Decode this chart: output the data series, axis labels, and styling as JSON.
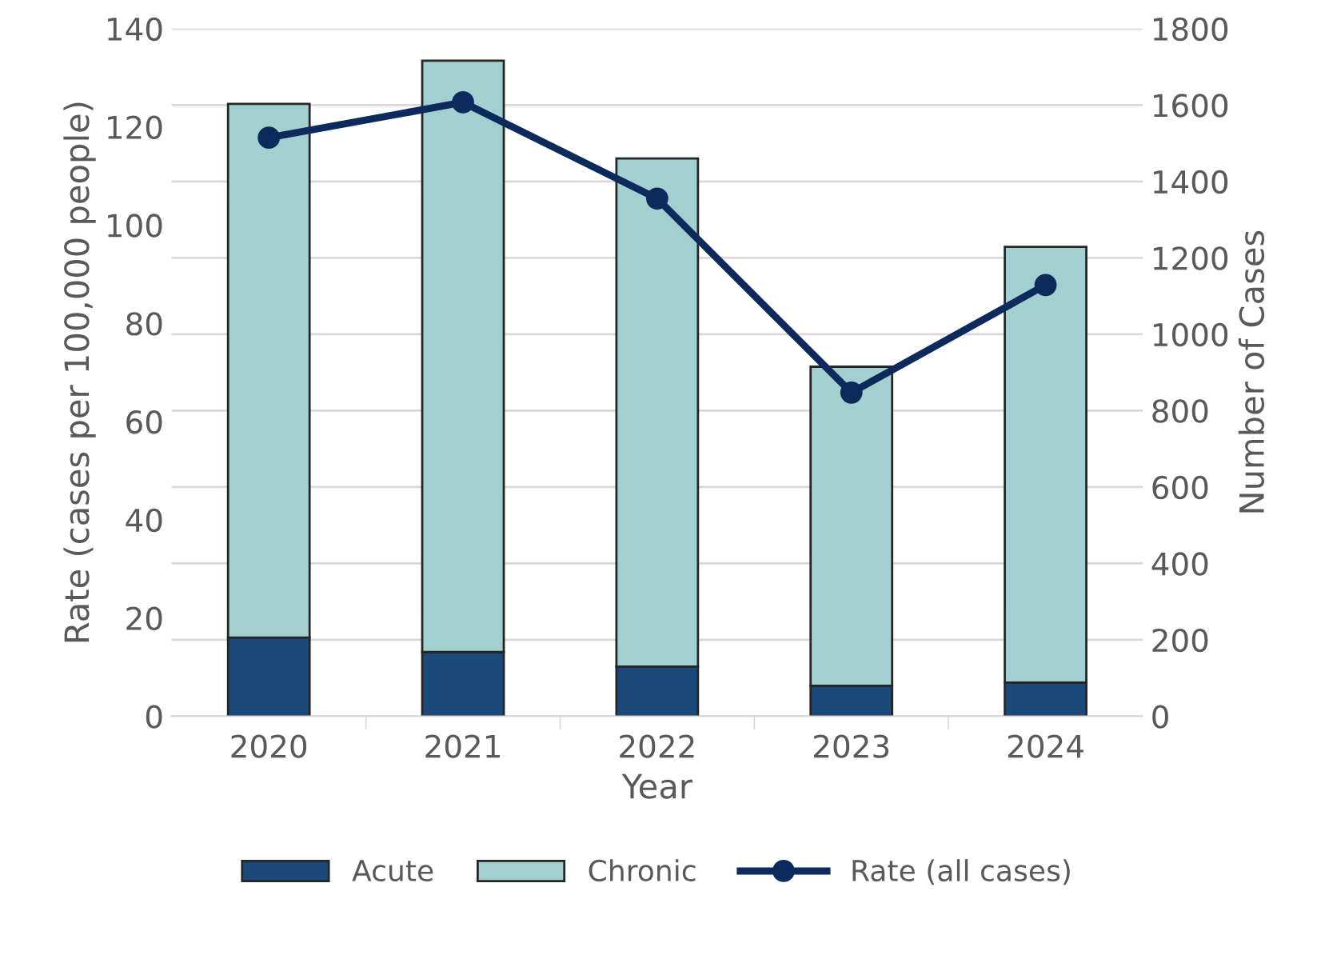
{
  "chart_data": {
    "type": "bar",
    "stacked": true,
    "categories": [
      "2020",
      "2021",
      "2022",
      "2023",
      "2024"
    ],
    "xlabel": "Year",
    "ylabel": "Rate (cases per 100,000 people)",
    "y2label": "Number of Cases",
    "series": [
      {
        "name": "Acute",
        "axis": "y2",
        "color": "#1b4a7a",
        "values": [
          206,
          168,
          130,
          80,
          88
        ]
      },
      {
        "name": "Chronic",
        "axis": "y2",
        "color": "#a2d0d0",
        "values": [
          1397,
          1548,
          1330,
          835,
          1141
        ]
      },
      {
        "name": "Rate (all cases)",
        "type": "line",
        "axis": "y",
        "color": "#0d2a5c",
        "marker": "circle",
        "values": [
          117.8,
          125,
          105.4,
          65.9,
          87.8
        ]
      }
    ],
    "ylim": [
      0,
      140
    ],
    "yticks": [
      0,
      20,
      40,
      60,
      80,
      100,
      120,
      140
    ],
    "y2lim": [
      0,
      1800
    ],
    "y2ticks": [
      0,
      200,
      400,
      600,
      800,
      1000,
      1200,
      1400,
      1600,
      1800
    ],
    "grid": "y2",
    "legend": "bottom"
  }
}
